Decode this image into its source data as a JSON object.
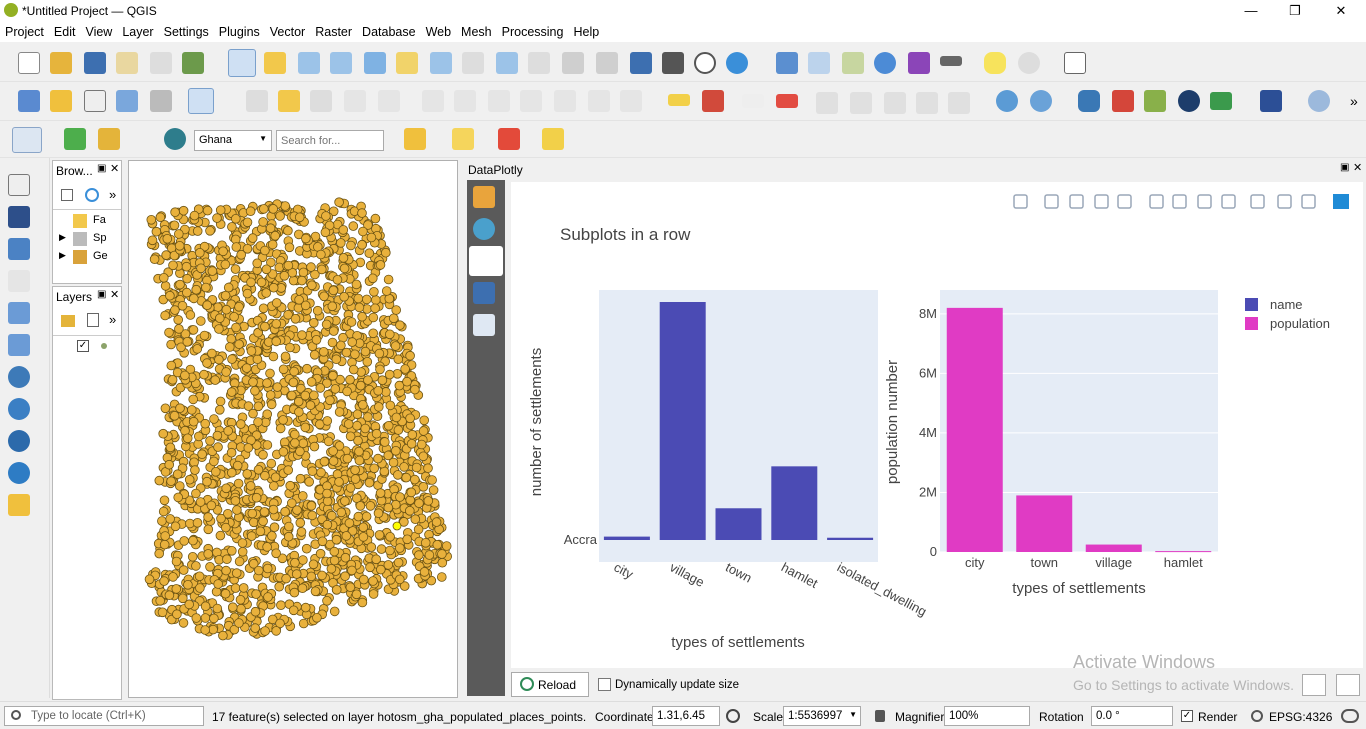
{
  "window": {
    "title": "*Untitled Project — QGIS",
    "minimize": "—",
    "restore": "❐",
    "close": "✕"
  },
  "menu": [
    "Project",
    "Edit",
    "View",
    "Layer",
    "Settings",
    "Plugins",
    "Vector",
    "Raster",
    "Database",
    "Web",
    "Mesh",
    "Processing",
    "Help"
  ],
  "locator": {
    "country": "Ghana",
    "search_placeholder": "Search for..."
  },
  "browser": {
    "title": "Brow...",
    "items": [
      "Fa",
      "Sp",
      "Ge"
    ]
  },
  "layers": {
    "title": "Layers"
  },
  "dataplotly": {
    "title": "DataPlotly",
    "reload": "Reload",
    "dynamic_label": "Dynamically update size"
  },
  "plot": {
    "title": "Subplots in a row",
    "legend": [
      {
        "name": "name",
        "color": "#4b4bb4"
      },
      {
        "name": "population",
        "color": "#e03bc4"
      }
    ]
  },
  "chart_data": [
    {
      "type": "bar",
      "title": "Subplots in a row",
      "xlabel": "types of settlements",
      "ylabel": "number of settlements",
      "categories": [
        "city",
        "village",
        "town",
        "hamlet",
        "isolated_dwelling"
      ],
      "values": [
        0.03,
        2.1,
        0.28,
        0.65,
        0.02
      ],
      "ytick_label": "Accra",
      "color": "#4b4bb4"
    },
    {
      "type": "bar",
      "xlabel": "types of settlements",
      "ylabel": "population number",
      "categories": [
        "city",
        "town",
        "village",
        "hamlet"
      ],
      "values": [
        8200000,
        1900000,
        250000,
        30000
      ],
      "yticks": [
        "0",
        "2M",
        "4M",
        "6M",
        "8M"
      ],
      "ylim": [
        0,
        8800000
      ],
      "color": "#e03bc4"
    }
  ],
  "watermark": {
    "line1": "Activate Windows",
    "line2": "Go to Settings to activate Windows."
  },
  "status": {
    "locate_placeholder": "Type to locate (Ctrl+K)",
    "message": "17 feature(s) selected on layer hotosm_gha_populated_places_points.",
    "coordinate_label": "Coordinate",
    "coordinate": "1.31,6.45",
    "scale_label": "Scale",
    "scale": "1:5536997",
    "magnifier_label": "Magnifier",
    "magnifier": "100%",
    "rotation_label": "Rotation",
    "rotation": "0.0 °",
    "render_label": "Render",
    "crs": "EPSG:4326"
  }
}
